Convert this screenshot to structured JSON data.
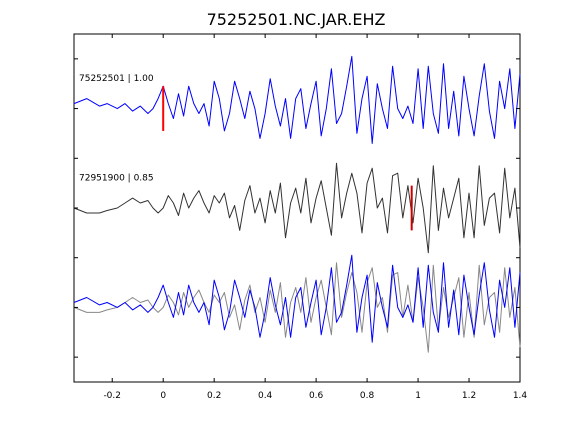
{
  "chart_data": {
    "type": "line",
    "title": "75252501.NC.JAR.EHZ",
    "xlabel": "",
    "ylabel": "",
    "xlim": [
      -0.35,
      1.4
    ],
    "xticks": [
      -0.2,
      0,
      0.2,
      0.4,
      0.6,
      0.8,
      1,
      1.2,
      1.4
    ],
    "xtick_labels": [
      "-0.2",
      "0",
      "0.2",
      "0.4",
      "0.6",
      "0.8",
      "1",
      "1.2",
      "1.4"
    ],
    "ylim": [
      -3.5,
      3.5
    ],
    "grid": false,
    "series": [
      {
        "label": "75252501 | 1.00",
        "color": "#0000ff",
        "offset": 2,
        "pick_time": 0.0,
        "pick_color": "#ff0000",
        "t": [
          -0.35,
          -0.3,
          -0.25,
          -0.22,
          -0.18,
          -0.15,
          -0.12,
          -0.09,
          -0.06,
          -0.04,
          -0.02,
          0.0,
          0.02,
          0.04,
          0.06,
          0.08,
          0.1,
          0.12,
          0.14,
          0.16,
          0.18,
          0.2,
          0.22,
          0.24,
          0.26,
          0.28,
          0.3,
          0.32,
          0.34,
          0.36,
          0.38,
          0.4,
          0.42,
          0.44,
          0.46,
          0.48,
          0.5,
          0.52,
          0.54,
          0.56,
          0.58,
          0.6,
          0.62,
          0.64,
          0.66,
          0.68,
          0.7,
          0.72,
          0.74,
          0.76,
          0.78,
          0.8,
          0.82,
          0.84,
          0.86,
          0.88,
          0.9,
          0.92,
          0.94,
          0.96,
          0.98,
          1.0,
          1.02,
          1.04,
          1.06,
          1.08,
          1.1,
          1.12,
          1.14,
          1.16,
          1.18,
          1.2,
          1.22,
          1.24,
          1.26,
          1.28,
          1.3,
          1.32,
          1.34,
          1.36,
          1.38,
          1.4
        ],
        "v": [
          0.1,
          0.2,
          0.05,
          0.1,
          0.0,
          0.1,
          -0.05,
          0.05,
          -0.1,
          0.0,
          0.2,
          0.45,
          0.1,
          -0.2,
          0.3,
          -0.15,
          0.45,
          0.1,
          -0.1,
          0.1,
          -0.35,
          0.55,
          0.2,
          -0.45,
          -0.1,
          0.55,
          0.2,
          -0.2,
          0.35,
          0.0,
          -0.6,
          -0.1,
          0.6,
          0.05,
          -0.35,
          0.2,
          -0.6,
          0.2,
          0.4,
          -0.4,
          0.1,
          0.55,
          -0.55,
          0.0,
          0.8,
          -0.3,
          -0.1,
          0.45,
          1.05,
          -0.5,
          0.2,
          0.65,
          -0.7,
          0.5,
          0.0,
          -0.4,
          0.85,
          0.0,
          -0.2,
          0.05,
          -0.3,
          0.8,
          -0.4,
          0.85,
          -0.1,
          -0.5,
          0.9,
          -0.4,
          0.35,
          -0.55,
          0.65,
          0.0,
          -0.55,
          0.25,
          0.9,
          -0.05,
          -0.6,
          0.55,
          0.0,
          0.8,
          -0.4,
          0.7
        ]
      },
      {
        "label": "72951900 | 0.85",
        "color": "#333333",
        "offset": 0,
        "pick_time": 0.975,
        "pick_color": "#cc0000",
        "t": [
          -0.35,
          -0.3,
          -0.25,
          -0.22,
          -0.18,
          -0.15,
          -0.12,
          -0.09,
          -0.06,
          -0.04,
          -0.02,
          0.0,
          0.02,
          0.04,
          0.06,
          0.08,
          0.1,
          0.12,
          0.14,
          0.16,
          0.18,
          0.2,
          0.22,
          0.24,
          0.26,
          0.28,
          0.3,
          0.32,
          0.34,
          0.36,
          0.38,
          0.4,
          0.42,
          0.44,
          0.46,
          0.48,
          0.5,
          0.52,
          0.54,
          0.56,
          0.58,
          0.6,
          0.62,
          0.64,
          0.66,
          0.68,
          0.7,
          0.72,
          0.74,
          0.76,
          0.78,
          0.8,
          0.82,
          0.84,
          0.86,
          0.88,
          0.9,
          0.92,
          0.94,
          0.96,
          0.98,
          1.0,
          1.02,
          1.04,
          1.06,
          1.08,
          1.1,
          1.12,
          1.14,
          1.16,
          1.18,
          1.2,
          1.22,
          1.24,
          1.26,
          1.28,
          1.3,
          1.32,
          1.34,
          1.36,
          1.38,
          1.4
        ],
        "v": [
          0.0,
          -0.1,
          -0.1,
          -0.05,
          0.0,
          0.1,
          0.2,
          0.1,
          0.15,
          0.0,
          -0.1,
          0.0,
          0.25,
          0.1,
          -0.15,
          0.3,
          0.0,
          0.2,
          0.35,
          0.1,
          -0.1,
          0.25,
          0.1,
          0.3,
          -0.2,
          0.05,
          -0.45,
          0.15,
          0.45,
          -0.1,
          0.2,
          -0.3,
          0.35,
          -0.1,
          0.5,
          -0.6,
          0.1,
          0.4,
          -0.1,
          0.6,
          -0.3,
          0.2,
          0.55,
          0.0,
          -0.55,
          0.9,
          -0.2,
          0.3,
          0.7,
          0.3,
          -0.5,
          0.5,
          0.8,
          0.0,
          0.2,
          -0.5,
          0.65,
          0.7,
          -0.2,
          0.45,
          -0.3,
          0.6,
          0.0,
          -0.9,
          0.85,
          -0.45,
          0.4,
          -0.2,
          0.2,
          0.6,
          -0.6,
          0.3,
          -0.6,
          0.85,
          -0.35,
          0.2,
          0.3,
          -0.5,
          0.8,
          -0.2,
          0.4,
          -0.8
        ]
      }
    ],
    "stack": {
      "offset": -2,
      "series_refs": [
        1,
        0
      ],
      "colors": [
        "#888888",
        "#0000ff"
      ]
    }
  }
}
